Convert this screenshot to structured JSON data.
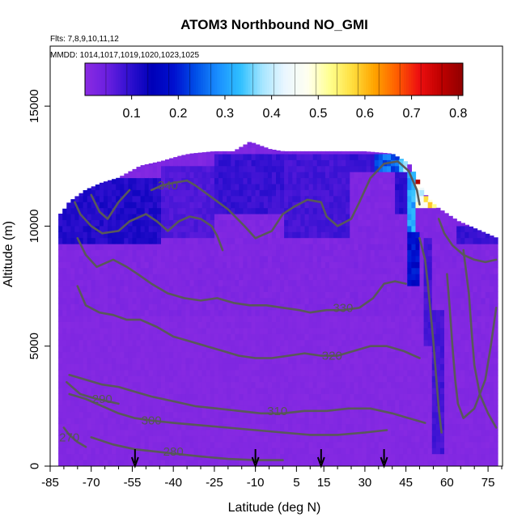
{
  "chart_data": {
    "type": "heatmap",
    "title": "ATOM3 Northbound NO_GMI",
    "subtitle_flights": "Flts: 7,8,9,10,11,12",
    "subtitle_dates": "MMDD: 1014,1017,1019,1020,1023,1025",
    "xlabel": "Latitude (deg N)",
    "ylabel": "Altitude (m)",
    "xlim": [
      -85,
      80
    ],
    "ylim": [
      0,
      17500
    ],
    "x_ticks": [
      -85,
      -70,
      -55,
      -40,
      -25,
      -10,
      5,
      15,
      30,
      45,
      60,
      75
    ],
    "x_tick_labels": [
      "-85",
      "-70",
      "-55",
      "-40",
      "-25",
      "-10",
      "5",
      "15",
      "30",
      "45",
      "60",
      "75"
    ],
    "y_ticks": [
      0,
      5000,
      10000,
      15000
    ],
    "y_tick_labels": [
      "0",
      "5000",
      "10000",
      "15000"
    ],
    "colorbar": {
      "range": [
        0,
        0.81
      ],
      "ticks": [
        0.1,
        0.2,
        0.3,
        0.4,
        0.5,
        0.6,
        0.7,
        0.8
      ],
      "tick_labels": [
        "0.1",
        "0.2",
        "0.3",
        "0.4",
        "0.5",
        "0.6",
        "0.7",
        "0.8"
      ],
      "colors": [
        "#8a2be2",
        "#6a1fe0",
        "#3010d0",
        "#0000b8",
        "#0010d0",
        "#0050e8",
        "#1a90ff",
        "#30c0ff",
        "#a8e6ff",
        "#eaf6ff",
        "#fffff0",
        "#ffff90",
        "#ffe040",
        "#ffa500",
        "#ff6000",
        "#ee1010",
        "#c00000",
        "#900000"
      ]
    },
    "top_edge": [
      [
        -81,
        10500
      ],
      [
        -78,
        11000
      ],
      [
        -72,
        11500
      ],
      [
        -66,
        11800
      ],
      [
        -60,
        12000
      ],
      [
        -52,
        12500
      ],
      [
        -44,
        12700
      ],
      [
        -38,
        12900
      ],
      [
        -34,
        13000
      ],
      [
        -25,
        13100
      ],
      [
        -18,
        13100
      ],
      [
        -12,
        13500
      ],
      [
        -5,
        13200
      ],
      [
        0,
        13100
      ],
      [
        10,
        13100
      ],
      [
        20,
        13100
      ],
      [
        30,
        13100
      ],
      [
        40,
        13000
      ],
      [
        46,
        12600
      ],
      [
        48,
        12200
      ],
      [
        52,
        11300
      ],
      [
        56,
        10800
      ],
      [
        60,
        10500
      ],
      [
        64,
        10200
      ],
      [
        68,
        10000
      ],
      [
        72,
        9800
      ],
      [
        76,
        9600
      ],
      [
        78,
        9500
      ]
    ],
    "enhancements": [
      {
        "lat": [
          -82,
          -45
        ],
        "alt": [
          9200,
          12000
        ],
        "value": 0.11
      },
      {
        "lat": [
          -45,
          -25
        ],
        "alt": [
          9500,
          12500
        ],
        "value": 0.07
      },
      {
        "lat": [
          -25,
          0
        ],
        "alt": [
          10500,
          13100
        ],
        "value": 0.09
      },
      {
        "lat": [
          0,
          25
        ],
        "alt": [
          9500,
          13100
        ],
        "value": 0.08
      },
      {
        "lat": [
          25,
          33
        ],
        "alt": [
          12300,
          13100
        ],
        "value": 0.09
      },
      {
        "lat": [
          33,
          42
        ],
        "alt": [
          12300,
          13100
        ],
        "value": 0.25
      },
      {
        "lat": [
          42,
          46
        ],
        "alt": [
          12300,
          13000
        ],
        "value": 0.38
      },
      {
        "lat": [
          41,
          46
        ],
        "alt": [
          10500,
          12300
        ],
        "value": 0.1
      },
      {
        "lat": [
          46,
          49
        ],
        "alt": [
          9800,
          12300
        ],
        "value": 0.3
      },
      {
        "lat": [
          49,
          52
        ],
        "alt": [
          10800,
          11700
        ],
        "value": 0.45
      },
      {
        "lat": [
          49,
          53
        ],
        "alt": [
          11700,
          12400
        ],
        "value": 0.7
      },
      {
        "lat": [
          52,
          56
        ],
        "alt": [
          10800,
          11300
        ],
        "value": 0.55
      },
      {
        "lat": [
          45,
          50
        ],
        "alt": [
          7500,
          9800
        ],
        "value": 0.18
      },
      {
        "lat": [
          51,
          54
        ],
        "alt": [
          5000,
          9500
        ],
        "value": 0.08
      },
      {
        "lat": [
          55,
          59
        ],
        "alt": [
          500,
          6500
        ],
        "value": 0.08
      },
      {
        "lat": [
          64,
          78
        ],
        "alt": [
          9300,
          10000
        ],
        "value": 0.09
      }
    ],
    "contours": [
      {
        "label": "340",
        "label_at": [
          -42,
          11700
        ],
        "points": [
          [
            -48,
            11500
          ],
          [
            -44,
            11700
          ],
          [
            -40,
            11800
          ],
          [
            -35,
            11900
          ],
          [
            -32,
            11700
          ],
          [
            -26,
            11200
          ],
          [
            -20,
            10700
          ],
          [
            -14,
            10000
          ],
          [
            -10,
            9500
          ],
          [
            -4,
            9800
          ],
          [
            0,
            10500
          ],
          [
            4,
            10800
          ],
          [
            9,
            11100
          ],
          [
            14,
            11000
          ],
          [
            16,
            10400
          ],
          [
            20,
            10000
          ],
          [
            25,
            10300
          ],
          [
            28,
            11000
          ],
          [
            32,
            12000
          ],
          [
            37,
            12600
          ],
          [
            42,
            12700
          ],
          [
            46,
            12300
          ],
          [
            49,
            11500
          ],
          [
            50,
            10900
          ]
        ]
      },
      {
        "label": "330",
        "label_at": [
          22,
          6600
        ],
        "points": [
          [
            -75,
            9500
          ],
          [
            -72,
            8800
          ],
          [
            -68,
            8300
          ],
          [
            -62,
            8600
          ],
          [
            -57,
            8300
          ],
          [
            -53,
            8000
          ],
          [
            -48,
            7600
          ],
          [
            -42,
            7200
          ],
          [
            -36,
            7000
          ],
          [
            -30,
            6900
          ],
          [
            -24,
            7000
          ],
          [
            -18,
            6800
          ],
          [
            -12,
            6700
          ],
          [
            -6,
            6700
          ],
          [
            0,
            6600
          ],
          [
            6,
            6500
          ],
          [
            10,
            6400
          ],
          [
            16,
            6500
          ],
          [
            22,
            6500
          ],
          [
            28,
            6600
          ],
          [
            33,
            7000
          ],
          [
            37,
            7600
          ],
          [
            41,
            7700
          ],
          [
            45,
            7600
          ]
        ]
      },
      {
        "label": "320",
        "label_at": [
          18,
          4600
        ],
        "points": [
          [
            -75,
            7500
          ],
          [
            -72,
            6700
          ],
          [
            -67,
            6400
          ],
          [
            -62,
            6300
          ],
          [
            -57,
            6100
          ],
          [
            -52,
            6100
          ],
          [
            -46,
            5800
          ],
          [
            -40,
            5400
          ],
          [
            -34,
            5200
          ],
          [
            -28,
            5000
          ],
          [
            -22,
            4800
          ],
          [
            -16,
            4600
          ],
          [
            -10,
            4500
          ],
          [
            -4,
            4500
          ],
          [
            2,
            4600
          ],
          [
            8,
            4700
          ],
          [
            14,
            4600
          ],
          [
            20,
            4600
          ],
          [
            26,
            4800
          ],
          [
            32,
            5000
          ],
          [
            38,
            5000
          ],
          [
            44,
            4800
          ],
          [
            50,
            4500
          ]
        ]
      },
      {
        "label": "310",
        "label_at": [
          -2,
          2300
        ],
        "points": [
          [
            -78,
            3800
          ],
          [
            -72,
            3600
          ],
          [
            -66,
            3400
          ],
          [
            -60,
            3300
          ],
          [
            -54,
            3100
          ],
          [
            -48,
            2900
          ],
          [
            -40,
            2700
          ],
          [
            -32,
            2500
          ],
          [
            -24,
            2400
          ],
          [
            -16,
            2300
          ],
          [
            -8,
            2200
          ],
          [
            0,
            2200
          ],
          [
            8,
            2300
          ],
          [
            16,
            2300
          ],
          [
            24,
            2400
          ],
          [
            32,
            2400
          ],
          [
            40,
            2200
          ],
          [
            46,
            2000
          ],
          [
            52,
            1800
          ]
        ]
      },
      {
        "label": "300",
        "label_at": [
          -48,
          1900
        ],
        "points": [
          [
            -78,
            3000
          ],
          [
            -72,
            2800
          ],
          [
            -66,
            2500
          ],
          [
            -60,
            2200
          ],
          [
            -54,
            2000
          ],
          [
            -48,
            1900
          ],
          [
            -40,
            1800
          ],
          [
            -30,
            1700
          ],
          [
            -20,
            1600
          ],
          [
            -10,
            1500
          ],
          [
            0,
            1400
          ],
          [
            10,
            1300
          ],
          [
            20,
            1300
          ],
          [
            30,
            1400
          ],
          [
            38,
            1500
          ]
        ]
      },
      {
        "label": "290",
        "label_at": [
          -66,
          2800
        ],
        "points": [
          [
            -79,
            3500
          ],
          [
            -74,
            3000
          ],
          [
            -68,
            2800
          ],
          [
            -64,
            2700
          ],
          [
            -60,
            2600
          ]
        ]
      },
      {
        "label": "280",
        "label_at": [
          -40,
          600
        ],
        "points": [
          [
            -70,
            1200
          ],
          [
            -62,
            900
          ],
          [
            -54,
            700
          ],
          [
            -46,
            600
          ],
          [
            -38,
            500
          ],
          [
            -30,
            400
          ],
          [
            -20,
            300
          ],
          [
            -10,
            250
          ],
          [
            0,
            250
          ]
        ]
      },
      {
        "label": "270",
        "label_at": [
          -78,
          1200
        ],
        "points": [
          [
            -80,
            1600
          ],
          [
            -78,
            1300
          ],
          [
            -75,
            1000
          ],
          [
            -72,
            800
          ]
        ]
      },
      {
        "label": "",
        "label_at": [
          0,
          0
        ],
        "points": [
          [
            -76,
            11000
          ],
          [
            -74,
            10500
          ],
          [
            -70,
            10000
          ],
          [
            -66,
            9700
          ],
          [
            -60,
            9800
          ],
          [
            -56,
            10200
          ],
          [
            -50,
            10500
          ],
          [
            -46,
            10200
          ],
          [
            -42,
            9800
          ],
          [
            -38,
            10200
          ],
          [
            -34,
            10400
          ],
          [
            -30,
            10300
          ],
          [
            -26,
            10000
          ],
          [
            -24,
            9600
          ],
          [
            -22,
            9000
          ]
        ]
      },
      {
        "label": "",
        "label_at": [
          0,
          0
        ],
        "points": [
          [
            -70,
            11300
          ],
          [
            -67,
            10600
          ],
          [
            -64,
            10300
          ],
          [
            -60,
            11000
          ],
          [
            -56,
            11500
          ]
        ]
      },
      {
        "label": "",
        "label_at": [
          0,
          0
        ],
        "points": [
          [
            50,
            9500
          ],
          [
            52,
            8600
          ],
          [
            53,
            7600
          ],
          [
            54,
            6400
          ],
          [
            55,
            5200
          ],
          [
            56,
            3800
          ],
          [
            57,
            2400
          ],
          [
            58,
            1400
          ]
        ]
      },
      {
        "label": "",
        "label_at": [
          0,
          0
        ],
        "points": [
          [
            60,
            8000
          ],
          [
            61,
            6600
          ],
          [
            62,
            5000
          ],
          [
            63,
            3600
          ],
          [
            64,
            2600
          ],
          [
            66,
            2000
          ],
          [
            70,
            2400
          ],
          [
            74,
            3600
          ],
          [
            76,
            5000
          ],
          [
            78,
            6600
          ]
        ]
      },
      {
        "label": "",
        "label_at": [
          0,
          0
        ],
        "points": [
          [
            66,
            9000
          ],
          [
            68,
            7200
          ],
          [
            69,
            5600
          ],
          [
            70,
            4200
          ],
          [
            72,
            3000
          ],
          [
            75,
            2200
          ],
          [
            78,
            1600
          ]
        ]
      },
      {
        "label": "",
        "label_at": [
          0,
          0
        ],
        "points": [
          [
            57,
            10300
          ],
          [
            59,
            9700
          ],
          [
            62,
            9200
          ],
          [
            66,
            8800
          ],
          [
            70,
            8600
          ],
          [
            74,
            8500
          ],
          [
            78,
            8600
          ]
        ]
      }
    ],
    "arrow_latitudes": [
      -54,
      -10,
      14,
      37
    ]
  }
}
